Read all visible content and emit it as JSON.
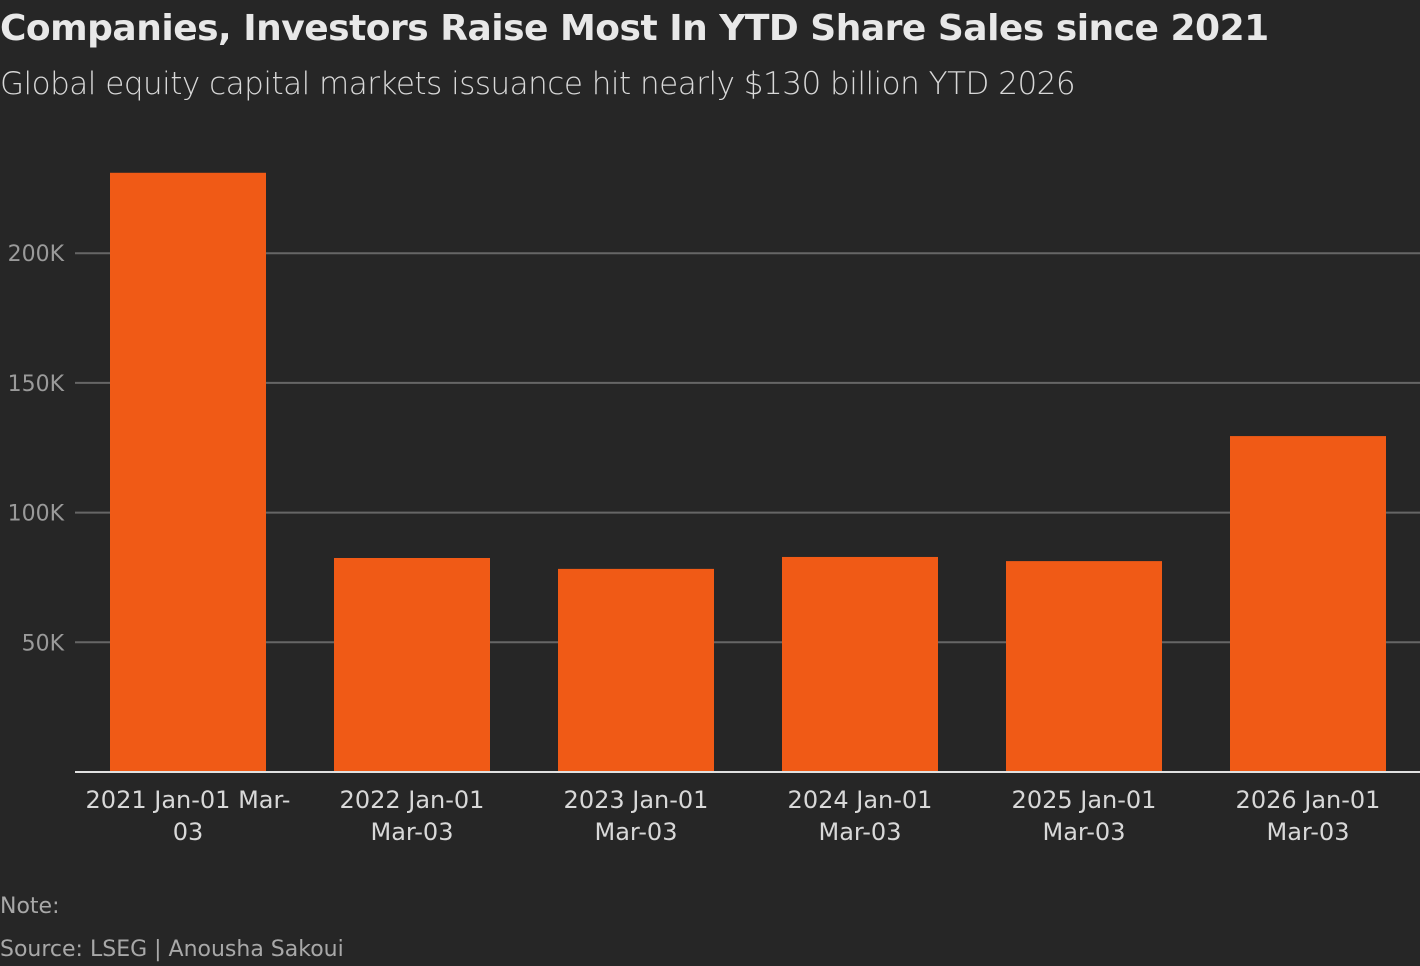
{
  "chart_data": {
    "type": "bar",
    "title": "Companies, Investors Raise Most In YTD Share Sales since 2021",
    "subtitle": "Global equity capital markets issuance hit nearly $130 billion YTD 2026",
    "categories": [
      [
        "2021 Jan-01 Mar-",
        "03"
      ],
      [
        "2022 Jan-01",
        "Mar-03"
      ],
      [
        "2023 Jan-01",
        "Mar-03"
      ],
      [
        "2024 Jan-01",
        "Mar-03"
      ],
      [
        "2025 Jan-01",
        "Mar-03"
      ],
      [
        "2026 Jan-01",
        "Mar-03"
      ]
    ],
    "values": [
      231000,
      82500,
      78300,
      82900,
      81300,
      129500
    ],
    "ylim": [
      0,
      230000
    ],
    "yticks": [
      50000,
      100000,
      150000,
      200000
    ],
    "ytick_labels": [
      "50K",
      "100K",
      "150K",
      "200K"
    ],
    "grid": true,
    "bar_color": "#f05a16",
    "background": "#262626",
    "note": "Note:",
    "source": "Source: LSEG | Anousha Sakoui"
  }
}
